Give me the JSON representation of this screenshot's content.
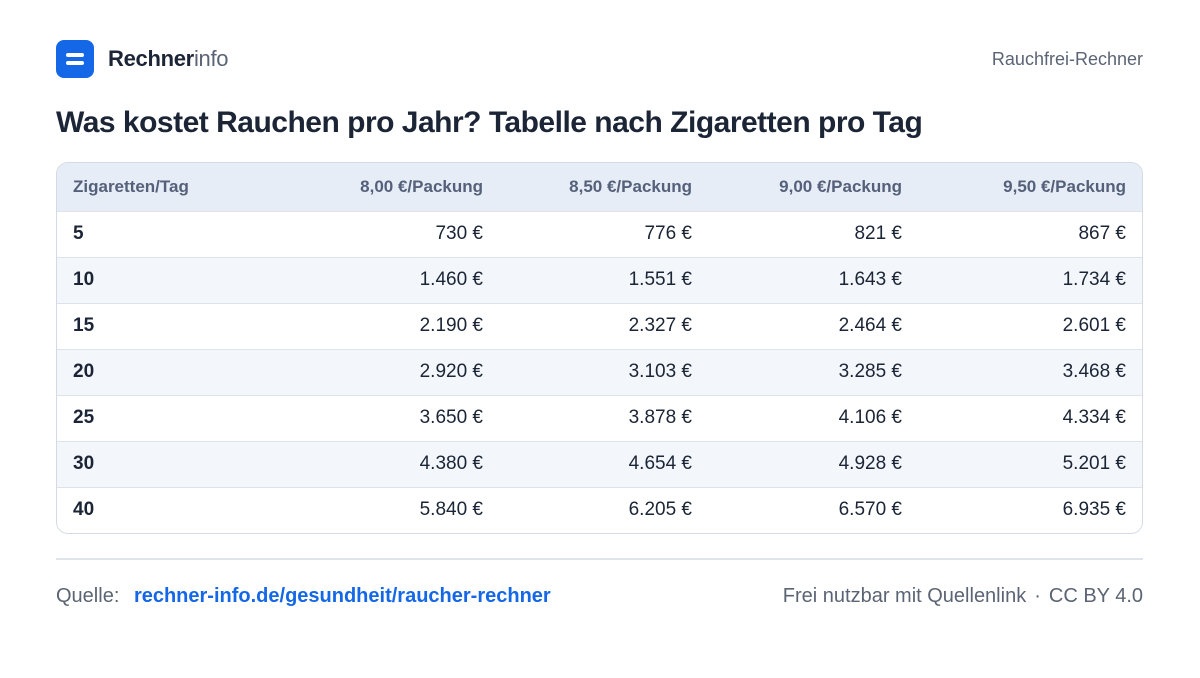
{
  "header": {
    "brand_bold": "Rechner",
    "brand_light": "info",
    "right_label": "Rauchfrei-Rechner"
  },
  "title": "Was kostet Rauchen pro Jahr? Tabelle nach Zigaretten pro Tag",
  "table": {
    "columns": [
      "Zigaretten/Tag",
      "8,00 €/Packung",
      "8,50 €/Packung",
      "9,00 €/Packung",
      "9,50 €/Packung"
    ],
    "rows": [
      [
        "5",
        "730 €",
        "776 €",
        "821 €",
        "867 €"
      ],
      [
        "10",
        "1.460 €",
        "1.551 €",
        "1.643 €",
        "1.734 €"
      ],
      [
        "15",
        "2.190 €",
        "2.327 €",
        "2.464 €",
        "2.601 €"
      ],
      [
        "20",
        "2.920 €",
        "3.103 €",
        "3.285 €",
        "3.468 €"
      ],
      [
        "25",
        "3.650 €",
        "3.878 €",
        "4.106 €",
        "4.334 €"
      ],
      [
        "30",
        "4.380 €",
        "4.654 €",
        "4.928 €",
        "5.201 €"
      ],
      [
        "40",
        "5.840 €",
        "6.205 €",
        "6.570 €",
        "6.935 €"
      ]
    ]
  },
  "footer": {
    "source_label": "Quelle:",
    "source_link": "rechner-info.de/gesundheit/raucher-rechner",
    "license_text": "Frei nutzbar mit Quellenlink",
    "separator": "·",
    "license": "CC BY 4.0"
  },
  "colors": {
    "accent": "#1467e6",
    "text": "#1b2536",
    "muted": "#5b6474",
    "header_bg": "#e6edf6",
    "stripe_bg": "#f3f6fa"
  },
  "icons": {
    "logo": "rechnerinfo-logo-icon"
  }
}
